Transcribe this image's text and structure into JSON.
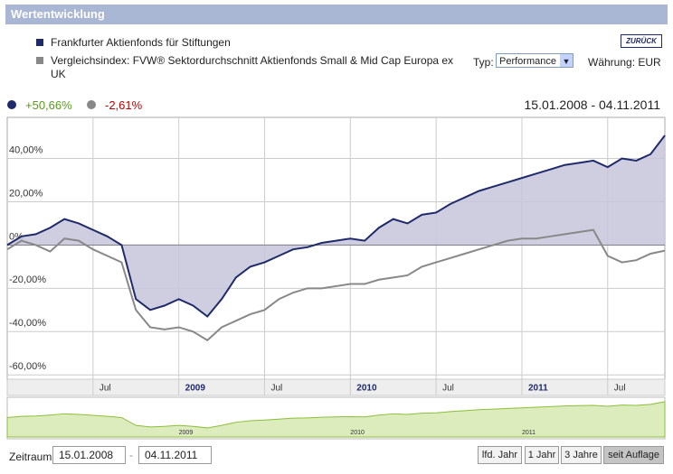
{
  "header": {
    "title": "Wertentwicklung",
    "back_button": "ZURÜCK"
  },
  "controls": {
    "type_label": "Typ:",
    "type_value": "Performance",
    "currency": "Währung: EUR"
  },
  "summary": {
    "fund_change": "+50,66%",
    "index_change": "-2,61%",
    "period": "15.01.2008 - 04.11.2011"
  },
  "chart_data": {
    "type": "line",
    "x": [
      "2008-01",
      "2008-02",
      "2008-03",
      "2008-04",
      "2008-05",
      "2008-06",
      "2008-07",
      "2008-08",
      "2008-09",
      "2008-10",
      "2008-11",
      "2008-12",
      "2009-01",
      "2009-02",
      "2009-03",
      "2009-04",
      "2009-05",
      "2009-06",
      "2009-07",
      "2009-08",
      "2009-09",
      "2009-10",
      "2009-11",
      "2009-12",
      "2010-01",
      "2010-02",
      "2010-03",
      "2010-04",
      "2010-05",
      "2010-06",
      "2010-07",
      "2010-08",
      "2010-09",
      "2010-10",
      "2010-11",
      "2010-12",
      "2011-01",
      "2011-02",
      "2011-03",
      "2011-04",
      "2011-05",
      "2011-06",
      "2011-07",
      "2011-08",
      "2011-09",
      "2011-10",
      "2011-11"
    ],
    "series": [
      {
        "name": "Frankfurter Aktienfonds für Stiftungen",
        "color": "#1f2a6b",
        "values": [
          0,
          4,
          5,
          8,
          12,
          10,
          7,
          4,
          0,
          -25,
          -30,
          -28,
          -25,
          -28,
          -33,
          -25,
          -15,
          -10,
          -8,
          -5,
          -2,
          -1,
          1,
          2,
          3,
          2,
          8,
          12,
          10,
          14,
          15,
          19,
          22,
          25,
          27,
          29,
          31,
          33,
          35,
          37,
          38,
          39,
          36,
          40,
          39,
          42,
          50.66
        ]
      },
      {
        "name": "Vergleichsindex: FVW® Sektordurchschnitt Aktienfonds Small & Mid Cap Europa ex UK",
        "color": "#888888",
        "values": [
          -2,
          2,
          0,
          -3,
          3,
          2,
          -2,
          -5,
          -8,
          -30,
          -38,
          -39,
          -38,
          -40,
          -44,
          -38,
          -35,
          -32,
          -30,
          -25,
          -22,
          -20,
          -20,
          -19,
          -18,
          -18,
          -16,
          -15,
          -14,
          -10,
          -8,
          -6,
          -4,
          -2,
          0,
          2,
          3,
          3,
          4,
          5,
          6,
          7,
          -5,
          -8,
          -7,
          -4,
          -2.61
        ]
      }
    ],
    "xlim": [
      "2008-01",
      "2011-11"
    ],
    "xticks": [
      {
        "value": "2008-07",
        "label": "Jul"
      },
      {
        "value": "2009-01",
        "label": "2009"
      },
      {
        "value": "2009-07",
        "label": "Jul"
      },
      {
        "value": "2010-01",
        "label": "2010"
      },
      {
        "value": "2010-07",
        "label": "Jul"
      },
      {
        "value": "2011-01",
        "label": "2011"
      },
      {
        "value": "2011-07",
        "label": "Jul"
      }
    ],
    "ylim": [
      -62,
      59
    ],
    "yticks": [
      {
        "value": 40,
        "label": "40,00%"
      },
      {
        "value": 20,
        "label": "20,00%"
      },
      {
        "value": 0,
        "label": "0%"
      },
      {
        "value": -20,
        "label": "-20,00%"
      },
      {
        "value": -40,
        "label": "-40,00%"
      },
      {
        "value": -60,
        "label": "-60,00%"
      }
    ],
    "grid": true,
    "fill_color": "#c6c6da",
    "navigator_color": "#8cbf3a"
  },
  "footer": {
    "period_label": "Zeitraum:",
    "from": "15.01.2008",
    "separator": "-",
    "to": "04.11.2011",
    "buttons": [
      "lfd. Jahr",
      "1 Jahr",
      "3 Jahre",
      "seit Auflage"
    ]
  }
}
